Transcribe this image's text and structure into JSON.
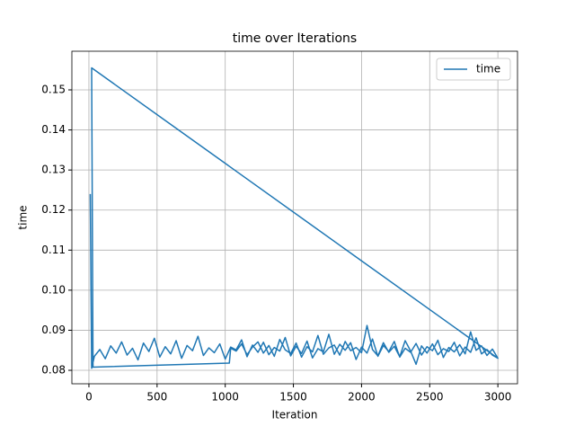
{
  "chart_data": {
    "type": "line",
    "title": "time over Iterations",
    "x_label": "Iteration",
    "y_label": "time",
    "x": [
      10,
      20,
      40,
      80,
      120,
      160,
      200,
      240,
      280,
      320,
      360,
      400,
      440,
      480,
      520,
      560,
      600,
      640,
      680,
      720,
      760,
      800,
      840,
      880,
      920,
      960,
      1000,
      1040,
      1080,
      1120,
      1160,
      1200,
      1240,
      1280,
      1320,
      1360,
      1400,
      1440,
      1480,
      1520,
      1560,
      1600,
      1640,
      1680,
      1720,
      1760,
      1800,
      1840,
      1880,
      1920,
      1960,
      2000,
      2040,
      2080,
      2120,
      2160,
      2200,
      2240,
      2280,
      2320,
      2360,
      2400,
      2440,
      2480,
      2520,
      2560,
      2600,
      2640,
      2680,
      2720,
      2760,
      2800,
      2840,
      2880,
      2920,
      2960,
      3000,
      20,
      30,
      1030,
      1040,
      1080,
      1120,
      1160,
      1200,
      1240,
      1280,
      1320,
      1360,
      1400,
      1440,
      1480,
      1520,
      1560,
      1600,
      1640,
      1680,
      1720,
      1760,
      1800,
      1840,
      1880,
      1920,
      1960,
      2000,
      2040,
      2080,
      2120,
      2160,
      2200,
      2240,
      2280,
      2320,
      2360,
      2400,
      2440,
      2480,
      2520,
      2560,
      2600,
      2640,
      2680,
      2720,
      2760,
      2800,
      2840,
      2880,
      2920,
      2960,
      3000
    ],
    "series": [
      {
        "name": "time",
        "color": "#1f77b4",
        "values": [
          0.124,
          0.0805,
          0.0835,
          0.0852,
          0.0829,
          0.0861,
          0.0843,
          0.0871,
          0.0838,
          0.0855,
          0.0826,
          0.0868,
          0.0847,
          0.088,
          0.0833,
          0.0859,
          0.0841,
          0.0874,
          0.083,
          0.0862,
          0.0849,
          0.0885,
          0.0837,
          0.0856,
          0.0844,
          0.0866,
          0.0828,
          0.0858,
          0.0851,
          0.0876,
          0.0834,
          0.0863,
          0.0845,
          0.087,
          0.0839,
          0.0857,
          0.0848,
          0.0882,
          0.0836,
          0.086,
          0.0842,
          0.0873,
          0.0831,
          0.0854,
          0.0846,
          0.089,
          0.084,
          0.0865,
          0.085,
          0.0869,
          0.0827,
          0.0858,
          0.0843,
          0.0878,
          0.0835,
          0.0862,
          0.0847,
          0.0872,
          0.0833,
          0.0855,
          0.0845,
          0.0867,
          0.0838,
          0.0859,
          0.0849,
          0.0875,
          0.0832,
          0.0857,
          0.0846,
          0.0864,
          0.0841,
          0.0896,
          0.085,
          0.0861,
          0.0837,
          0.0853,
          0.083,
          0.1555,
          0.0808,
          0.0818,
          0.0855,
          0.0848,
          0.0866,
          0.0839,
          0.0858,
          0.0871,
          0.0843,
          0.0862,
          0.0835,
          0.0877,
          0.0851,
          0.0842,
          0.0868,
          0.0833,
          0.0859,
          0.0846,
          0.0887,
          0.084,
          0.0856,
          0.0863,
          0.0838,
          0.0872,
          0.0849,
          0.0857,
          0.0844,
          0.0912,
          0.0852,
          0.0836,
          0.0869,
          0.0845,
          0.086,
          0.0834,
          0.0874,
          0.0848,
          0.0815,
          0.0861,
          0.0843,
          0.0866,
          0.0839,
          0.0854,
          0.0847,
          0.087,
          0.0836,
          0.0858,
          0.0845,
          0.0881,
          0.0841,
          0.0852,
          0.0838,
          0.083
        ]
      }
    ],
    "xlim": [
      -125,
      3144
    ],
    "ylim": [
      0.07664,
      0.15965
    ],
    "xticks": [
      0,
      500,
      1000,
      1500,
      2000,
      2500,
      3000
    ],
    "yticks": [
      0.08,
      0.09,
      {
        "value": 0.1,
        "label": "0.10"
      },
      0.11,
      0.12,
      0.13,
      0.14,
      0.15
    ],
    "grid": true,
    "legend": "upper-right"
  }
}
